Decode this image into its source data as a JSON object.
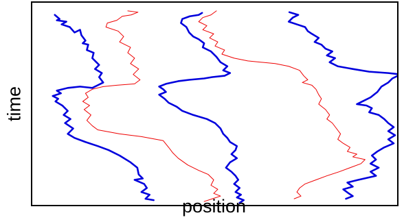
{
  "chart_data": {
    "type": "line",
    "xlabel": "position",
    "ylabel": "time",
    "x_ticks": "none",
    "y_ticks": "none",
    "grid": false,
    "legend": "none",
    "y_direction": "down",
    "colors": {
      "blue": "#0000dd",
      "red": "#ee0000",
      "frame": "#000000"
    },
    "series": [
      {
        "color": "#0000dd",
        "width": "thick",
        "points": [
          [
            33,
            18
          ],
          [
            40,
            24
          ],
          [
            36,
            26
          ],
          [
            50,
            28
          ],
          [
            43,
            32
          ],
          [
            55,
            36
          ],
          [
            62,
            44
          ],
          [
            70,
            40
          ],
          [
            72,
            48
          ],
          [
            78,
            56
          ],
          [
            74,
            60
          ],
          [
            82,
            62
          ],
          [
            80,
            70
          ],
          [
            90,
            74
          ],
          [
            88,
            82
          ],
          [
            94,
            88
          ],
          [
            98,
            92
          ],
          [
            92,
            98
          ],
          [
            102,
            104
          ],
          [
            98,
            110
          ],
          [
            104,
            118
          ],
          [
            96,
            122
          ],
          [
            88,
            126
          ],
          [
            70,
            124
          ],
          [
            52,
            126
          ],
          [
            36,
            130
          ],
          [
            42,
            134
          ],
          [
            30,
            138
          ],
          [
            38,
            142
          ],
          [
            34,
            146
          ],
          [
            44,
            152
          ],
          [
            52,
            160
          ],
          [
            46,
            166
          ],
          [
            56,
            172
          ],
          [
            48,
            178
          ],
          [
            60,
            186
          ],
          [
            52,
            194
          ],
          [
            62,
            200
          ],
          [
            78,
            206
          ],
          [
            96,
            212
          ],
          [
            112,
            218
          ],
          [
            128,
            226
          ],
          [
            144,
            236
          ],
          [
            154,
            244
          ],
          [
            156,
            254
          ],
          [
            162,
            260
          ],
          [
            150,
            262
          ],
          [
            164,
            268
          ],
          [
            168,
            274
          ],
          [
            160,
            280
          ],
          [
            172,
            284
          ],
          [
            166,
            290
          ],
          [
            178,
            292
          ]
        ]
      },
      {
        "color": "#ee0000",
        "width": "thin",
        "points": [
          [
            140,
            12
          ],
          [
            155,
            14
          ],
          [
            145,
            18
          ],
          [
            132,
            20
          ],
          [
            124,
            26
          ],
          [
            110,
            30
          ],
          [
            108,
            36
          ],
          [
            126,
            42
          ],
          [
            134,
            50
          ],
          [
            128,
            58
          ],
          [
            144,
            66
          ],
          [
            140,
            74
          ],
          [
            150,
            82
          ],
          [
            144,
            90
          ],
          [
            156,
            98
          ],
          [
            148,
            106
          ],
          [
            158,
            114
          ],
          [
            150,
            120
          ],
          [
            124,
            122
          ],
          [
            104,
            124
          ],
          [
            88,
            128
          ],
          [
            78,
            134
          ],
          [
            82,
            140
          ],
          [
            74,
            146
          ],
          [
            84,
            152
          ],
          [
            76,
            158
          ],
          [
            86,
            166
          ],
          [
            80,
            174
          ],
          [
            88,
            182
          ],
          [
            96,
            188
          ],
          [
            128,
            194
          ],
          [
            160,
            198
          ],
          [
            192,
            204
          ],
          [
            200,
            214
          ],
          [
            206,
            222
          ],
          [
            214,
            230
          ],
          [
            228,
            240
          ],
          [
            244,
            248
          ],
          [
            258,
            254
          ],
          [
            266,
            262
          ],
          [
            262,
            270
          ],
          [
            272,
            276
          ],
          [
            266,
            282
          ],
          [
            276,
            286
          ],
          [
            264,
            290
          ],
          [
            252,
            294
          ]
        ]
      },
      {
        "color": "#0000dd",
        "width": "thick",
        "points": [
          [
            249,
            15
          ],
          [
            244,
            18
          ],
          [
            231,
            20
          ],
          [
            220,
            24
          ],
          [
            218,
            30
          ],
          [
            226,
            36
          ],
          [
            230,
            44
          ],
          [
            236,
            50
          ],
          [
            244,
            54
          ],
          [
            252,
            60
          ],
          [
            250,
            66
          ],
          [
            262,
            72
          ],
          [
            270,
            80
          ],
          [
            276,
            88
          ],
          [
            286,
            94
          ],
          [
            280,
            100
          ],
          [
            290,
            104
          ],
          [
            282,
            108
          ],
          [
            264,
            110
          ],
          [
            252,
            112
          ],
          [
            230,
            114
          ],
          [
            214,
            116
          ],
          [
            196,
            120
          ],
          [
            186,
            124
          ],
          [
            192,
            128
          ],
          [
            196,
            132
          ],
          [
            186,
            136
          ],
          [
            194,
            142
          ],
          [
            200,
            148
          ],
          [
            212,
            154
          ],
          [
            220,
            160
          ],
          [
            236,
            166
          ],
          [
            256,
            172
          ],
          [
            268,
            178
          ],
          [
            276,
            186
          ],
          [
            280,
            194
          ],
          [
            286,
            200
          ],
          [
            290,
            206
          ],
          [
            300,
            212
          ],
          [
            298,
            218
          ],
          [
            292,
            224
          ],
          [
            300,
            230
          ],
          [
            290,
            236
          ],
          [
            284,
            244
          ],
          [
            292,
            250
          ],
          [
            298,
            256
          ],
          [
            302,
            262
          ],
          [
            296,
            268
          ],
          [
            304,
            274
          ],
          [
            298,
            280
          ],
          [
            306,
            284
          ],
          [
            300,
            288
          ],
          [
            310,
            292
          ],
          [
            304,
            296
          ]
        ]
      },
      {
        "color": "#ee0000",
        "width": "thin",
        "points": [
          [
            270,
            12
          ],
          [
            262,
            18
          ],
          [
            250,
            22
          ],
          [
            244,
            28
          ],
          [
            256,
            34
          ],
          [
            250,
            40
          ],
          [
            266,
            46
          ],
          [
            260,
            52
          ],
          [
            272,
            58
          ],
          [
            268,
            64
          ],
          [
            282,
            70
          ],
          [
            278,
            76
          ],
          [
            296,
            82
          ],
          [
            316,
            86
          ],
          [
            336,
            88
          ],
          [
            356,
            90
          ],
          [
            376,
            94
          ],
          [
            392,
            100
          ],
          [
            398,
            108
          ],
          [
            404,
            114
          ],
          [
            396,
            118
          ],
          [
            410,
            122
          ],
          [
            416,
            128
          ],
          [
            420,
            136
          ],
          [
            424,
            142
          ],
          [
            420,
            150
          ],
          [
            430,
            158
          ],
          [
            436,
            166
          ],
          [
            432,
            172
          ],
          [
            440,
            178
          ],
          [
            446,
            186
          ],
          [
            452,
            194
          ],
          [
            448,
            202
          ],
          [
            456,
            208
          ],
          [
            466,
            214
          ],
          [
            462,
            220
          ],
          [
            476,
            224
          ],
          [
            470,
            228
          ],
          [
            488,
            232
          ],
          [
            482,
            238
          ],
          [
            466,
            244
          ],
          [
            450,
            250
          ],
          [
            432,
            256
          ],
          [
            416,
            262
          ],
          [
            400,
            268
          ],
          [
            392,
            274
          ],
          [
            388,
            280
          ],
          [
            394,
            286
          ],
          [
            384,
            290
          ]
        ]
      },
      {
        "color": "#0000dd",
        "width": "thick",
        "points": [
          [
            377,
            14
          ],
          [
            390,
            18
          ],
          [
            382,
            22
          ],
          [
            376,
            28
          ],
          [
            388,
            32
          ],
          [
            400,
            36
          ],
          [
            404,
            42
          ],
          [
            410,
            46
          ],
          [
            420,
            52
          ],
          [
            414,
            58
          ],
          [
            424,
            62
          ],
          [
            430,
            68
          ],
          [
            440,
            72
          ],
          [
            432,
            78
          ],
          [
            444,
            82
          ],
          [
            436,
            88
          ],
          [
            448,
            94
          ],
          [
            470,
            98
          ],
          [
            494,
            102
          ],
          [
            522,
            104
          ],
          [
            540,
            106
          ],
          [
            528,
            112
          ],
          [
            522,
            118
          ],
          [
            512,
            124
          ],
          [
            506,
            132
          ],
          [
            496,
            140
          ],
          [
            484,
            146
          ],
          [
            476,
            150
          ],
          [
            490,
            152
          ],
          [
            498,
            156
          ],
          [
            494,
            162
          ],
          [
            508,
            166
          ],
          [
            516,
            172
          ],
          [
            522,
            178
          ],
          [
            530,
            184
          ],
          [
            522,
            190
          ],
          [
            532,
            196
          ],
          [
            522,
            202
          ],
          [
            530,
            208
          ],
          [
            516,
            214
          ],
          [
            506,
            220
          ],
          [
            498,
            226
          ],
          [
            504,
            232
          ],
          [
            496,
            238
          ],
          [
            508,
            244
          ],
          [
            496,
            250
          ],
          [
            504,
            256
          ],
          [
            478,
            262
          ],
          [
            462,
            266
          ],
          [
            470,
            272
          ],
          [
            456,
            276
          ],
          [
            464,
            282
          ],
          [
            470,
            286
          ],
          [
            460,
            290
          ]
        ]
      }
    ]
  }
}
